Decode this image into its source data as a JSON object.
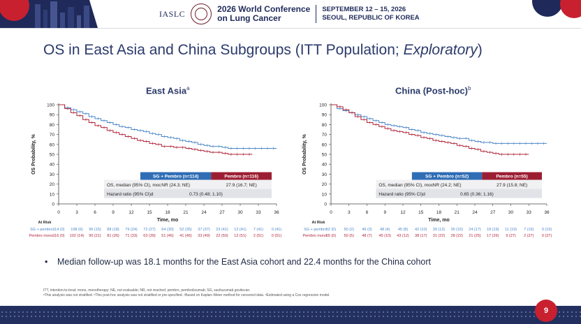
{
  "header": {
    "org": "IASLC",
    "conference": [
      "2026 World Conference",
      "on Lung Cancer"
    ],
    "dates": [
      "SEPTEMBER 12 – 15, 2026",
      "SEOUL, REPUBLIC OF KOREA"
    ],
    "colors": {
      "navy": "#1f2a5a",
      "red": "#c8202f"
    }
  },
  "slide": {
    "title_main": "OS in East Asia and China Subgroups (ITT Population; ",
    "title_italic": "Exploratory",
    "title_end": ")",
    "page_number": "9"
  },
  "bullet": "Median follow-up was 18.1 months for the East Asia cohort and 22.4 months for the China cohort",
  "footnotes": [
    "ITT, intention-to-treat; mono, monotherapy; NE, not evaluable; NR, not reached; pembro, pembrolizumab; SG, sacituzumab govitecan.",
    "ᵃThis analysis was not stratified. ᵇThis post-hoc analysis was not stratified or pre-specified. ᶜBased on Kaplan–Meier method for censored data. ᵈEstimated using a Cox regression model."
  ],
  "panels": [
    {
      "title": "East Asia",
      "title_sup": "a",
      "legend_sg": "SG + Pembro (n=114)",
      "legend_pembro": "Pembro (n=116)",
      "median_label": "OS, median (95% CI), mo",
      "median_sup": "c",
      "median_sg": "NR (24.3; NE)",
      "median_pembro": "27.9 (16.7; NE)",
      "hr_label": "Hazard ratio (95% CI)",
      "hr_sup": "d",
      "hr_value": "0.73 (0.48; 1.10)",
      "at_risk_sg": [
        "114 (0)",
        "108 (6)",
        "96 (15)",
        "88 (18)",
        "79 (24)",
        "72 (27)",
        "64 (30)",
        "52 (35)",
        "37 (37)",
        "23 (41)",
        "12 (41)",
        "7 (41)",
        "0 (41)"
      ],
      "at_risk_pembro": [
        "116 (0)",
        "102 (14)",
        "90 (21)",
        "81 (26)",
        "71 (33)",
        "63 (39)",
        "51 (46)",
        "41 (46)",
        "33 (49)",
        "22 (50)",
        "12 (51)",
        "2 (51)",
        "0 (51)"
      ]
    },
    {
      "title": "China (Post-hoc)",
      "title_sup": "b",
      "legend_sg": "SG + Pembro (n=52)",
      "legend_pembro": "Pembro (n=55)",
      "median_label": "OS, median (95% CI), mo",
      "median_sup": "c",
      "median_sg": "NR (24.2; NE)",
      "median_pembro": "27.9 (15.8; NE)",
      "hr_label": "Hazard ratio (95% CI)",
      "hr_sup": "d",
      "hr_value": "0.65 (0.36; 1.16)",
      "at_risk_sg": [
        "52 (0)",
        "50 (2)",
        "49 (3)",
        "48 (4)",
        "45 (8)",
        "42 (10)",
        "39 (12)",
        "35 (15)",
        "24 (17)",
        "18 (19)",
        "11 (19)",
        "7 (19)",
        "0 (19)"
      ],
      "at_risk_pembro": [
        "55 (0)",
        "50 (5)",
        "48 (7)",
        "45 (10)",
        "43 (12)",
        "38 (17)",
        "31 (22)",
        "28 (22)",
        "21 (25)",
        "17 (26)",
        "9 (27)",
        "2 (27)",
        "0 (27)"
      ]
    }
  ],
  "chart_common": {
    "ylabel": "OS Probability, %",
    "xlabel": "Time, mo",
    "at_risk_title": "At Risk",
    "row_sg_label": "SG + pembro",
    "row_pembro_label": "Pembro mono",
    "yticks": [
      "0",
      "10",
      "20",
      "30",
      "40",
      "50",
      "60",
      "70",
      "80",
      "90",
      "100"
    ],
    "xticks": [
      "0",
      "3",
      "6",
      "9",
      "12",
      "15",
      "18",
      "21",
      "24",
      "27",
      "30",
      "33",
      "36"
    ],
    "colors": {
      "sg": "#4a86c8",
      "pembro": "#b0243a"
    }
  },
  "chart_data": [
    {
      "type": "line",
      "title": "East Asia",
      "xlabel": "Time, mo",
      "ylabel": "OS Probability, %",
      "xlim": [
        0,
        36
      ],
      "ylim": [
        0,
        100
      ],
      "series": [
        {
          "name": "SG + Pembro (n=114)",
          "x": [
            0,
            1,
            2,
            3,
            4,
            5,
            6,
            7,
            8,
            9,
            10,
            11,
            12,
            13,
            14,
            15,
            16,
            17,
            18,
            19,
            20,
            21,
            22,
            23,
            24,
            25,
            26,
            27,
            28,
            29,
            30,
            31,
            32,
            33,
            34,
            35,
            36
          ],
          "y": [
            100,
            97,
            95,
            93,
            91,
            88,
            86,
            84,
            82,
            80,
            78,
            77,
            75,
            74,
            73,
            71,
            70,
            68,
            67,
            66,
            64,
            63,
            62,
            60,
            59,
            58,
            58,
            57,
            56,
            56,
            56,
            56,
            56,
            56,
            56,
            56,
            56
          ]
        },
        {
          "name": "Pembro (n=116)",
          "x": [
            0,
            1,
            2,
            3,
            4,
            5,
            6,
            7,
            8,
            9,
            10,
            11,
            12,
            13,
            14,
            15,
            16,
            17,
            18,
            19,
            20,
            21,
            22,
            23,
            24,
            25,
            26,
            27,
            28,
            29,
            30,
            31,
            32
          ],
          "y": [
            100,
            96,
            92,
            89,
            85,
            82,
            79,
            77,
            74,
            72,
            70,
            68,
            66,
            64,
            63,
            61,
            60,
            58,
            58,
            57,
            57,
            56,
            55,
            54,
            53,
            52,
            52,
            51,
            50,
            50,
            50,
            50,
            50
          ]
        }
      ]
    },
    {
      "type": "line",
      "title": "China (Post-hoc)",
      "xlabel": "Time, mo",
      "ylabel": "OS Probability, %",
      "xlim": [
        0,
        36
      ],
      "ylim": [
        0,
        100
      ],
      "series": [
        {
          "name": "SG + Pembro (n=52)",
          "x": [
            0,
            1,
            2,
            3,
            4,
            5,
            6,
            7,
            8,
            9,
            10,
            11,
            12,
            13,
            14,
            15,
            16,
            17,
            18,
            19,
            20,
            21,
            22,
            23,
            24,
            25,
            26,
            27,
            28,
            29,
            30,
            31,
            32,
            33,
            34,
            35,
            36
          ],
          "y": [
            100,
            96,
            94,
            92,
            90,
            88,
            86,
            84,
            82,
            80,
            79,
            78,
            77,
            75,
            74,
            72,
            71,
            70,
            69,
            68,
            67,
            66,
            66,
            64,
            63,
            62,
            62,
            61,
            61,
            61,
            61,
            61,
            61,
            61,
            61,
            61,
            61
          ]
        },
        {
          "name": "Pembro (n=55)",
          "x": [
            0,
            1,
            2,
            3,
            4,
            5,
            6,
            7,
            8,
            9,
            10,
            11,
            12,
            13,
            14,
            15,
            16,
            17,
            18,
            19,
            20,
            21,
            22,
            23,
            24,
            25,
            26,
            27,
            28,
            29,
            30,
            31,
            32,
            33
          ],
          "y": [
            100,
            98,
            95,
            92,
            88,
            85,
            82,
            80,
            78,
            76,
            74,
            73,
            72,
            70,
            69,
            67,
            66,
            64,
            63,
            62,
            61,
            59,
            58,
            56,
            55,
            53,
            52,
            51,
            50,
            50,
            50,
            50,
            50,
            50
          ]
        }
      ]
    }
  ]
}
